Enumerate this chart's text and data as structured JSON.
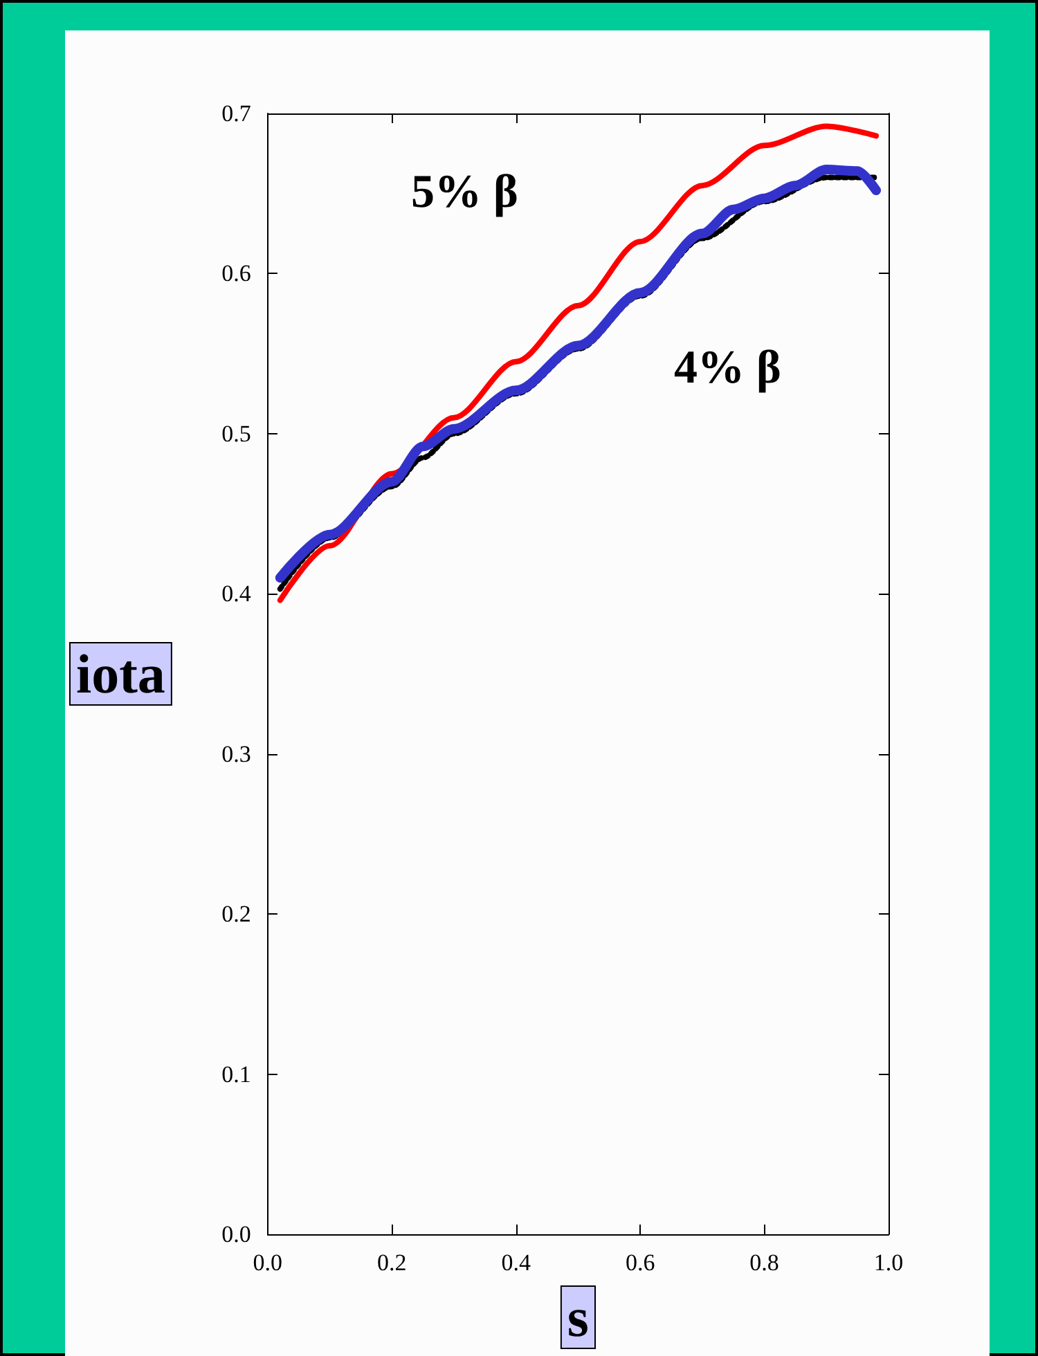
{
  "chart_data": {
    "type": "line",
    "xlabel": "s",
    "ylabel": "iota",
    "xlim": [
      0,
      1
    ],
    "xticks": [
      {
        "value": 0,
        "label": "0.0"
      },
      0.2,
      0.4,
      0.6,
      0.8,
      {
        "value": 1,
        "label": "1.0"
      }
    ],
    "ylim": [
      0,
      0.7
    ],
    "yticks": [
      {
        "value": 0,
        "label": "0.0"
      },
      0.1,
      0.2,
      0.3,
      0.4,
      0.5,
      0.6,
      0.7
    ],
    "grid": false,
    "marker": "none",
    "series": [
      {
        "color": "#000000",
        "line_style": "dotted",
        "x": [
          0.02,
          0.1,
          0.2,
          0.25,
          0.3,
          0.4,
          0.5,
          0.6,
          0.7,
          0.8,
          0.9,
          0.98
        ],
        "values": [
          0.403,
          0.435,
          0.467,
          0.485,
          0.5,
          0.525,
          0.553,
          0.586,
          0.622,
          0.645,
          0.66,
          0.66
        ]
      },
      {
        "color": "#ff0000",
        "line_style": "solid",
        "x": [
          0.02,
          0.1,
          0.2,
          0.3,
          0.4,
          0.5,
          0.6,
          0.7,
          0.8,
          0.9,
          0.98
        ],
        "values": [
          0.396,
          0.43,
          0.475,
          0.51,
          0.545,
          0.58,
          0.62,
          0.655,
          0.68,
          0.692,
          0.686
        ]
      },
      {
        "color": "#3333cc",
        "line_style": "solid",
        "x": [
          0.02,
          0.1,
          0.2,
          0.25,
          0.3,
          0.4,
          0.5,
          0.6,
          0.7,
          0.75,
          0.8,
          0.85,
          0.9,
          0.95,
          0.98
        ],
        "values": [
          0.41,
          0.437,
          0.47,
          0.492,
          0.503,
          0.527,
          0.555,
          0.588,
          0.625,
          0.64,
          0.647,
          0.655,
          0.665,
          0.664,
          0.652
        ]
      }
    ],
    "annotations": [
      "5% β",
      "4% β"
    ]
  }
}
